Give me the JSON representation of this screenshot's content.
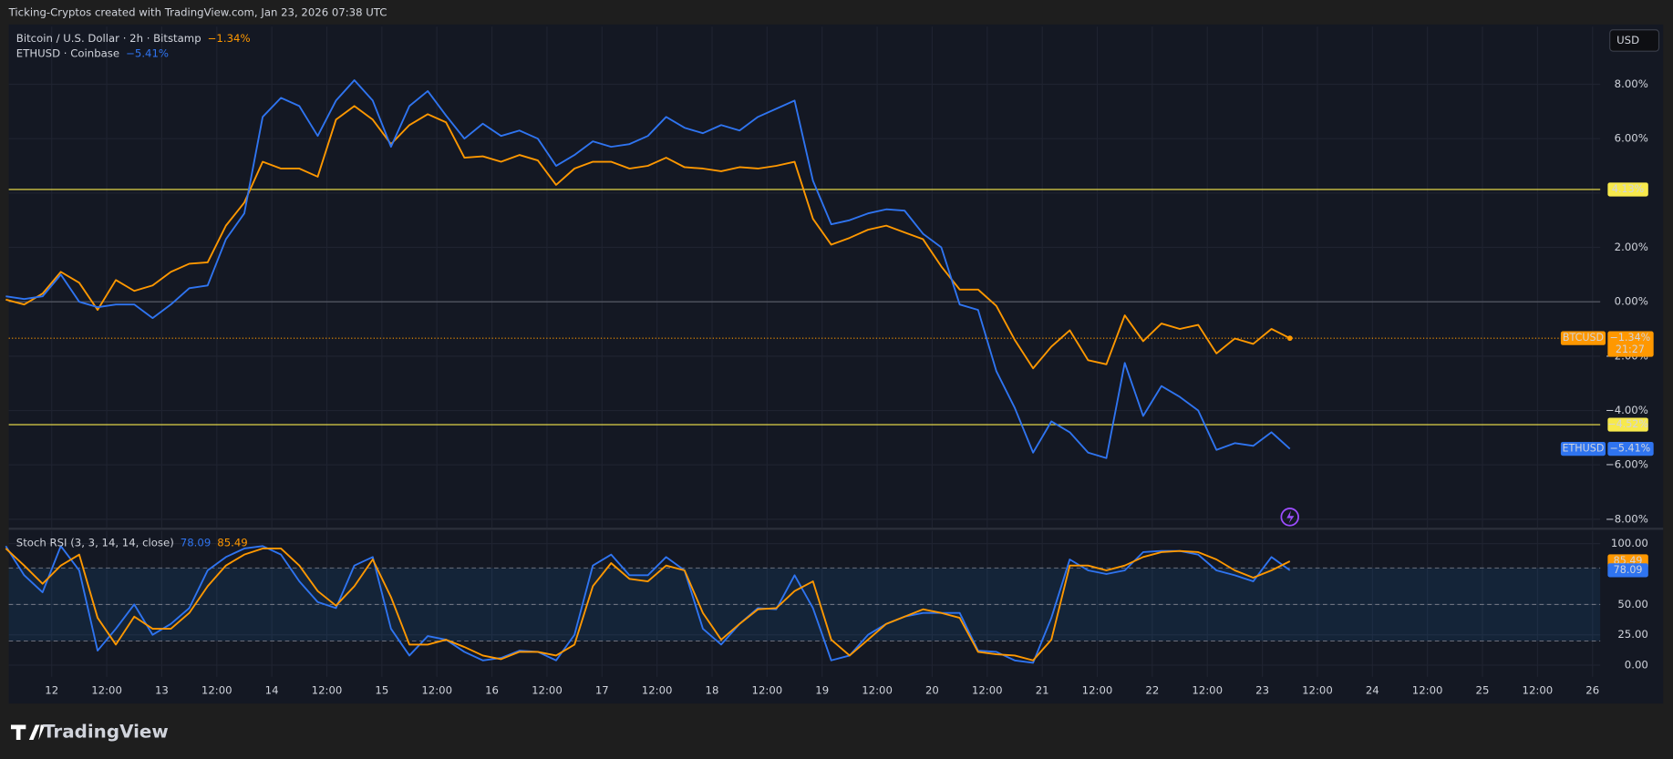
{
  "header": "Ticking-Cryptos created with TradingView.com, Jan 23, 2026 07:38 UTC",
  "currency_button": "USD",
  "brand": "TradingView",
  "chart_data": [
    {
      "type": "line",
      "x": [
        11.583,
        11.75,
        11.917,
        12.083,
        12.25,
        12.417,
        12.583,
        12.75,
        12.917,
        13.083,
        13.25,
        13.417,
        13.583,
        13.75,
        13.917,
        14.083,
        14.25,
        14.417,
        14.583,
        14.75,
        14.917,
        15.083,
        15.25,
        15.417,
        15.583,
        15.75,
        15.917,
        16.083,
        16.25,
        16.417,
        16.583,
        16.75,
        16.917,
        17.083,
        17.25,
        17.417,
        17.583,
        17.75,
        17.917,
        18.083,
        18.25,
        18.417,
        18.583,
        18.75,
        18.917,
        19.083,
        19.25,
        19.417,
        19.583,
        19.75,
        19.917,
        20.083,
        20.25,
        20.417,
        20.583,
        20.75,
        20.917,
        21.083,
        21.25,
        21.417,
        21.583,
        21.75,
        21.917,
        22.083,
        22.25,
        22.417,
        22.583,
        22.75,
        22.917,
        23.083,
        23.25
      ],
      "xlim": [
        11.61,
        26.07
      ],
      "ylim": [
        -8.31,
        10.12
      ],
      "yticks": [
        {
          "value": 8,
          "label": "8.00%"
        },
        {
          "value": 6,
          "label": "6.00%"
        },
        {
          "value": 4,
          "label": "4.00%"
        },
        {
          "value": 2,
          "label": "2.00%"
        },
        {
          "value": 0,
          "label": "0.00%"
        },
        {
          "value": -2,
          "label": "−2.00%"
        },
        {
          "value": -4,
          "label": "−4.00%"
        },
        {
          "value": -6,
          "label": "−6.00%"
        },
        {
          "value": -8,
          "label": "−8.00%"
        }
      ],
      "grid": true,
      "baseline": 0,
      "hlines": [
        {
          "value": 4.13,
          "label": "4.13%",
          "color": "#f7e94c"
        },
        {
          "value": -4.52,
          "label": "−4.52%",
          "color": "#f7e94c"
        }
      ],
      "series": [
        {
          "name": "Bitcoin / U.S. Dollar · 2h · Bitstamp",
          "symbol": "BTCUSD",
          "color": "#ff9800",
          "last_label": "−1.34%",
          "countdown": "21:27",
          "values": [
            0.08,
            -0.1,
            0.3,
            1.1,
            0.7,
            -0.3,
            0.8,
            0.4,
            0.6,
            1.1,
            1.4,
            1.45,
            2.8,
            3.65,
            5.15,
            4.9,
            4.9,
            4.6,
            6.7,
            7.2,
            6.7,
            5.8,
            6.5,
            6.9,
            6.6,
            5.3,
            5.35,
            5.15,
            5.4,
            5.2,
            4.3,
            4.9,
            5.15,
            5.15,
            4.9,
            5.0,
            5.3,
            4.95,
            4.9,
            4.8,
            4.95,
            4.9,
            5.0,
            5.15,
            3.05,
            2.1,
            2.35,
            2.65,
            2.8,
            2.55,
            2.3,
            1.3,
            0.45,
            0.45,
            -0.15,
            -1.4,
            -2.45,
            -1.65,
            -1.05,
            -2.15,
            -2.3,
            -0.5,
            -1.45,
            -0.8,
            -1.0,
            -0.85,
            -1.9,
            -1.35,
            -1.55,
            -1.0,
            -1.34
          ]
        },
        {
          "name": "ETHUSD · Coinbase",
          "symbol": "ETHUSD",
          "color": "#2f74f0",
          "last_label": "−5.41%",
          "values": [
            0.2,
            0.1,
            0.2,
            1.0,
            0,
            -0.2,
            -0.1,
            -0.1,
            -0.6,
            -0.1,
            0.5,
            0.6,
            2.3,
            3.25,
            6.8,
            7.5,
            7.2,
            6.1,
            7.4,
            8.15,
            7.4,
            5.7,
            7.2,
            7.75,
            6.85,
            6.0,
            6.55,
            6.1,
            6.3,
            6.0,
            5.0,
            5.4,
            5.9,
            5.7,
            5.8,
            6.1,
            6.8,
            6.4,
            6.2,
            6.5,
            6.3,
            6.8,
            7.1,
            7.4,
            4.45,
            2.85,
            3.0,
            3.25,
            3.4,
            3.35,
            2.5,
            2.0,
            -0.1,
            -0.3,
            -2.55,
            -3.9,
            -5.55,
            -4.4,
            -4.8,
            -5.55,
            -5.75,
            -2.25,
            -4.2,
            -3.1,
            -3.5,
            -4.0,
            -5.45,
            -5.2,
            -5.3,
            -4.8,
            -5.41
          ]
        }
      ]
    },
    {
      "type": "line",
      "title": "Stoch RSI (3, 3, 14, 14, close)",
      "ylim": [
        -9.6,
        110.5
      ],
      "yticks": [
        {
          "value": 100,
          "label": "100.00"
        },
        {
          "value": 50,
          "label": "50.00"
        },
        {
          "value": 25,
          "label": "25.00"
        },
        {
          "value": 0,
          "label": "0.00"
        }
      ],
      "levels": [
        80,
        50,
        20
      ],
      "band": true,
      "grid": true,
      "xticks": [
        {
          "value": 12,
          "label": "12"
        },
        {
          "value": 12.5,
          "label": "12:00"
        },
        {
          "value": 13,
          "label": "13"
        },
        {
          "value": 13.5,
          "label": "12:00"
        },
        {
          "value": 14,
          "label": "14"
        },
        {
          "value": 14.5,
          "label": "12:00"
        },
        {
          "value": 15,
          "label": "15"
        },
        {
          "value": 15.5,
          "label": "12:00"
        },
        {
          "value": 16,
          "label": "16"
        },
        {
          "value": 16.5,
          "label": "12:00"
        },
        {
          "value": 17,
          "label": "17"
        },
        {
          "value": 17.5,
          "label": "12:00"
        },
        {
          "value": 18,
          "label": "18"
        },
        {
          "value": 18.5,
          "label": "12:00"
        },
        {
          "value": 19,
          "label": "19"
        },
        {
          "value": 19.5,
          "label": "12:00"
        },
        {
          "value": 20,
          "label": "20"
        },
        {
          "value": 20.5,
          "label": "12:00"
        },
        {
          "value": 21,
          "label": "21"
        },
        {
          "value": 21.5,
          "label": "12:00"
        },
        {
          "value": 22,
          "label": "22"
        },
        {
          "value": 22.5,
          "label": "12:00"
        },
        {
          "value": 23,
          "label": "23"
        },
        {
          "value": 23.5,
          "label": "12:00"
        },
        {
          "value": 24,
          "label": "24"
        },
        {
          "value": 24.5,
          "label": "12:00"
        },
        {
          "value": 25,
          "label": "25"
        },
        {
          "value": 25.5,
          "label": "12:00"
        },
        {
          "value": 26,
          "label": "26"
        }
      ],
      "series": [
        {
          "color": "#2f74f0",
          "values": [
            98,
            74,
            60,
            98,
            78,
            12,
            30,
            50,
            25,
            34,
            47,
            78,
            89,
            96,
            98,
            91,
            69,
            52,
            47,
            82,
            89,
            30,
            8,
            24,
            21,
            11,
            4,
            6,
            12,
            11,
            4,
            25,
            82,
            91,
            74,
            74,
            89,
            78,
            30,
            17,
            34,
            47,
            46,
            74,
            47,
            4,
            8,
            25,
            34,
            40,
            43,
            43,
            43,
            12,
            11,
            4,
            2,
            39,
            87,
            78,
            75,
            78,
            93,
            94,
            94,
            91,
            78,
            74,
            69,
            89,
            78.09
          ]
        },
        {
          "color": "#ff9800",
          "values": [
            96,
            82,
            67,
            82,
            91,
            39,
            17,
            40,
            30,
            30,
            43,
            65,
            82,
            91,
            96,
            96,
            82,
            61,
            49,
            65,
            87,
            56,
            17,
            17,
            21,
            15,
            8,
            5,
            11,
            11,
            8,
            17,
            65,
            84,
            71,
            69,
            82,
            78,
            43,
            21,
            34,
            46,
            47,
            61,
            69,
            21,
            8,
            21,
            34,
            40,
            46,
            43,
            39,
            11,
            9,
            8,
            4,
            21,
            82,
            82,
            78,
            82,
            89,
            93,
            94,
            93,
            87,
            78,
            72,
            78,
            85.49
          ]
        }
      ]
    }
  ]
}
